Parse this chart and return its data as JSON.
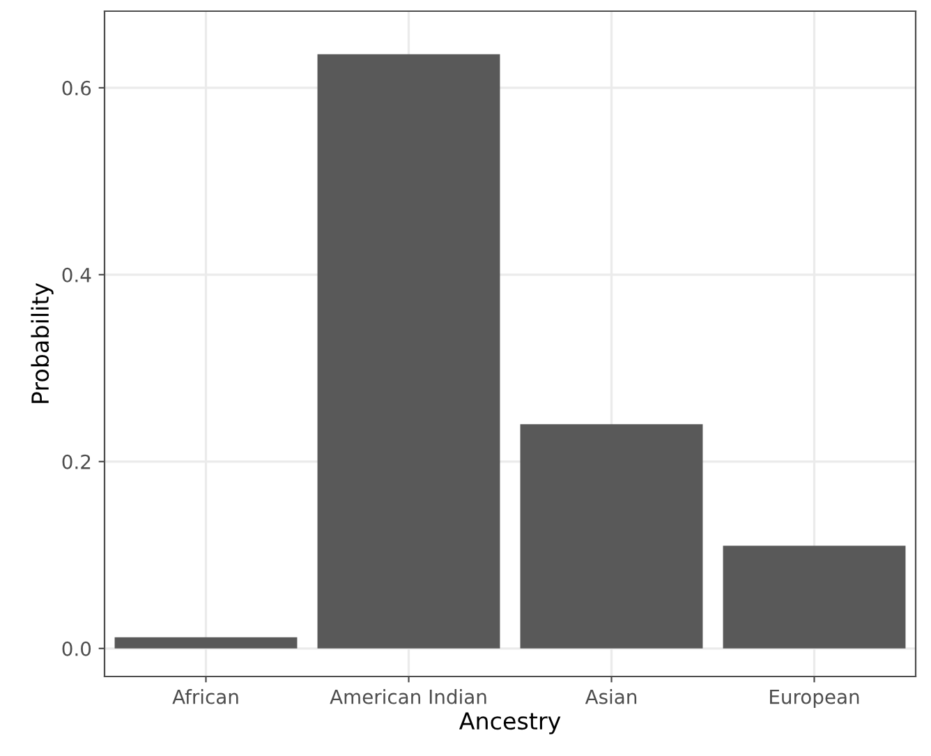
{
  "chart_data": {
    "type": "bar",
    "xlabel": "Ancestry",
    "ylabel": "Probability",
    "categories": [
      "African",
      "American Indian",
      "Asian",
      "European"
    ],
    "values": [
      0.012,
      0.636,
      0.24,
      0.11
    ],
    "color": "#595959",
    "ylim": [
      -0.03,
      0.682
    ],
    "yticks": [
      {
        "value": 0,
        "label": "0.0"
      },
      0.2,
      0.4,
      0.6
    ],
    "grid": true
  }
}
